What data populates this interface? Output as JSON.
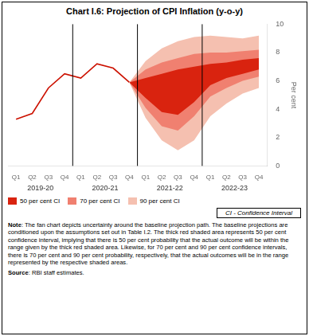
{
  "chart_data": {
    "type": "line",
    "title": "Chart I.6: Projection of CPI Inflation (y-o-y)",
    "ylabel": "Per cent",
    "categories": [
      "Q1",
      "Q2",
      "Q3",
      "Q4",
      "Q1",
      "Q2",
      "Q3",
      "Q4",
      "Q1",
      "Q2",
      "Q3",
      "Q4",
      "Q1",
      "Q2",
      "Q3",
      "Q4"
    ],
    "year_labels": [
      "2019-20",
      "2020-21",
      "2021-22",
      "2022-23"
    ],
    "series": [
      {
        "type": "line",
        "color": "#cc1100",
        "values": [
          3.3,
          3.7,
          5.5,
          6.5,
          6.2,
          7.2,
          6.9,
          5.9,
          null,
          null,
          null,
          null,
          null,
          null,
          null,
          null
        ]
      },
      {
        "type": "area",
        "name": "50 per cent CI",
        "color": "#d9230f",
        "upper": [
          null,
          null,
          null,
          null,
          null,
          null,
          null,
          5.9,
          6.2,
          6.5,
          6.8,
          7.0,
          7.2,
          7.3,
          7.5,
          7.6
        ],
        "lower": [
          null,
          null,
          null,
          null,
          null,
          null,
          null,
          5.9,
          4.8,
          3.8,
          3.6,
          4.5,
          5.7,
          6.2,
          6.5,
          6.8
        ]
      },
      {
        "type": "area",
        "name": "70 per cent CI",
        "color": "#f08070",
        "upper": [
          null,
          null,
          null,
          null,
          null,
          null,
          null,
          5.9,
          6.8,
          7.3,
          7.6,
          7.9,
          8.0,
          8.0,
          8.1,
          8.2
        ],
        "lower": [
          null,
          null,
          null,
          null,
          null,
          null,
          null,
          5.9,
          4.1,
          2.8,
          2.5,
          3.5,
          4.9,
          5.5,
          6.0,
          6.3
        ]
      },
      {
        "type": "area",
        "name": "90 per cent CI",
        "color": "#f5c0b0",
        "upper": [
          null,
          null,
          null,
          null,
          null,
          null,
          null,
          5.9,
          7.4,
          8.3,
          8.8,
          9.1,
          9.2,
          9.1,
          9.0,
          9.2
        ],
        "lower": [
          null,
          null,
          null,
          null,
          null,
          null,
          null,
          5.9,
          3.4,
          1.8,
          1.1,
          1.8,
          3.5,
          4.4,
          5.1,
          5.5
        ]
      }
    ],
    "ylim": [
      0,
      10
    ],
    "yticks": [
      0,
      2,
      4,
      6,
      8,
      10
    ],
    "grid": false,
    "legend": "bottom left",
    "annotations": [
      "CI - Confidence Interval"
    ],
    "note_label": "Note",
    "note": ": The fan chart depicts uncertainty around the baseline projection path. The baseline projections are conditioned upon the assumptions set out in Table I.2.  The thick red shaded area represents 50 per cent confidence interval, implying that there is 50 per cent probability that the actual outcome will be within the range given by the thick red shaded area. Likewise, for 70 per cent and 90 per cent confidence intervals, there is 70 per cent and 90 per cent probability, respectively,  that the actual outcomes will be in the range represented by the respective shaded areas.",
    "source_label": "Source",
    "source": ": RBI staff estimates."
  }
}
